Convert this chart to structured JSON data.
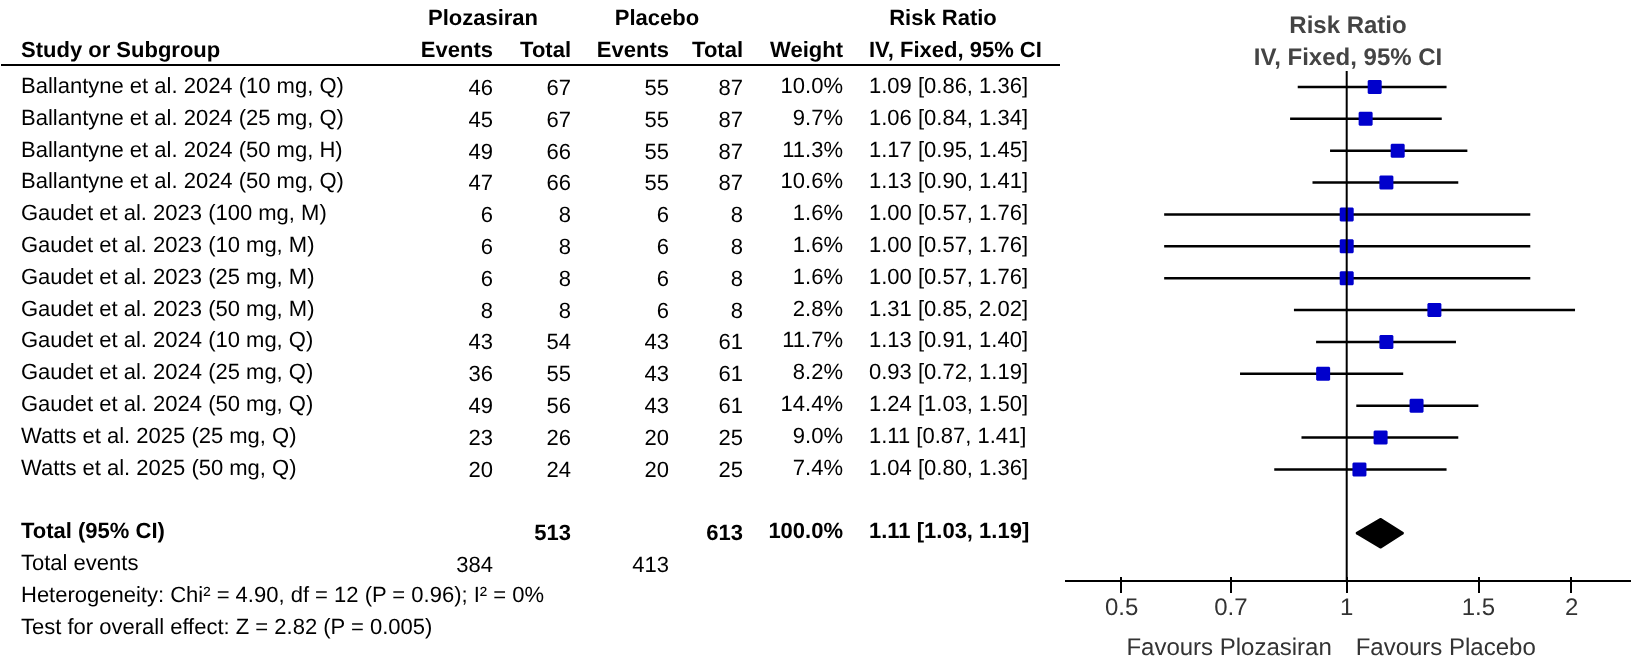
{
  "chart_data": [
    {
      "type": "other",
      "ylabel": "Study or Subgroup",
      "data_labels": true,
      "categories": [
        "Ballantyne et al. 2024 (10 mg, Q)",
        "Ballantyne et al. 2024 (25 mg, Q)",
        "Ballantyne et al. 2024 (50 mg, H)",
        "Ballantyne et al. 2024 (50 mg, Q)",
        "Gaudet et al. 2023 (100 mg, M)",
        "Gaudet et al. 2023 (10 mg, M)",
        "Gaudet et al. 2023 (25 mg, M)",
        "Gaudet et al. 2023 (50 mg, M)",
        "Gaudet et al. 2024 (10 mg, Q)",
        "Gaudet et al. 2024 (25 mg, Q)",
        "Gaudet et al. 2024 (50 mg, Q)",
        "Watts et al. 2025 (25 mg, Q)",
        "Watts et al. 2025 (50 mg, Q)",
        null,
        "Total (95% CI)",
        "Total events"
      ],
      "series": [
        {
          "name": "Events",
          "values": [
            46,
            45,
            49,
            47,
            6,
            6,
            6,
            8,
            43,
            36,
            49,
            23,
            20,
            null,
            null,
            384
          ]
        },
        {
          "name": "Total",
          "values": [
            67,
            67,
            66,
            66,
            8,
            8,
            8,
            8,
            54,
            55,
            56,
            26,
            24,
            null,
            513,
            null
          ]
        },
        {
          "name": "Events",
          "values": [
            55,
            55,
            55,
            55,
            6,
            6,
            6,
            6,
            43,
            43,
            43,
            20,
            20,
            null,
            null,
            413
          ]
        },
        {
          "name": "Total",
          "values": [
            87,
            87,
            87,
            87,
            8,
            8,
            8,
            8,
            61,
            61,
            61,
            25,
            25,
            null,
            613,
            null
          ]
        },
        {
          "name": "Weight",
          "values": [
            10.0,
            9.7,
            11.3,
            10.6,
            1.6,
            1.6,
            1.6,
            2.8,
            11.7,
            8.2,
            14.4,
            9.0,
            7.4,
            null,
            100.0,
            null
          ],
          "value_labels": [
            "10.0%",
            "9.7%",
            "11.3%",
            "10.6%",
            "1.6%",
            "1.6%",
            "1.6%",
            "2.8%",
            "11.7%",
            "8.2%",
            "14.4%",
            "9.0%",
            "7.4%",
            null,
            "100.0%",
            null
          ]
        },
        {
          "name": "IV, Fixed, 95% CI",
          "values": [
            1.09,
            1.06,
            1.17,
            1.13,
            1.0,
            1.0,
            1.0,
            1.31,
            1.13,
            0.93,
            1.24,
            1.11,
            1.04,
            null,
            1.11,
            null
          ],
          "value_labels": [
            "1.09 [0.86, 1.36]",
            "1.06 [0.84, 1.34]",
            "1.17 [0.95, 1.45]",
            "1.13 [0.90, 1.41]",
            "1.00 [0.57, 1.76]",
            "1.00 [0.57, 1.76]",
            "1.00 [0.57, 1.76]",
            "1.31 [0.85, 2.02]",
            "1.13 [0.91, 1.40]",
            "0.93 [0.72, 1.19]",
            "1.24 [1.03, 1.50]",
            "1.11 [0.87, 1.41]",
            "1.04 [0.80, 1.36]",
            null,
            "1.11 [1.03, 1.19]",
            null
          ]
        }
      ],
      "annotations": [
        "Plozasiran",
        "Placebo",
        "Risk Ratio",
        "Heterogeneity: Chi² = 4.90, df = 12 (P = 0.96); I² = 0%",
        "Test for overall effect: Z = 2.82 (P = 0.005)"
      ]
    },
    {
      "type": "scatter",
      "title": "Risk Ratio",
      "subtitle": "IV, Fixed, 95% CI",
      "orientation": "horizontal",
      "log": "x",
      "tick_labels": "x",
      "grid": false,
      "categories": [
        null,
        null,
        null,
        null,
        null,
        null,
        null,
        null,
        null,
        null,
        null,
        null,
        null,
        null,
        null,
        null
      ],
      "series": [
        {
          "color": "#0000cc",
          "marker": "square",
          "values": [
            1.09,
            1.06,
            1.17,
            1.13,
            1.0,
            1.0,
            1.0,
            1.31,
            1.13,
            0.93,
            1.24,
            1.11,
            1.04,
            null,
            null,
            null
          ],
          "errors": [
            [
              0.86,
              1.36
            ],
            [
              0.84,
              1.34
            ],
            [
              0.95,
              1.45
            ],
            [
              0.9,
              1.41
            ],
            [
              0.57,
              1.76
            ],
            [
              0.57,
              1.76
            ],
            [
              0.57,
              1.76
            ],
            [
              0.85,
              2.02
            ],
            [
              0.91,
              1.4
            ],
            [
              0.72,
              1.19
            ],
            [
              1.03,
              1.5
            ],
            [
              0.87,
              1.41
            ],
            [
              0.8,
              1.36
            ],
            null,
            null,
            null
          ]
        },
        {
          "color": "#000000",
          "marker": "diamond",
          "values": [
            null,
            null,
            null,
            null,
            null,
            null,
            null,
            null,
            null,
            null,
            null,
            null,
            null,
            null,
            1.11,
            null
          ],
          "errors": [
            null,
            null,
            null,
            null,
            null,
            null,
            null,
            null,
            null,
            null,
            null,
            null,
            null,
            null,
            [
              1.03,
              1.19
            ],
            null
          ]
        }
      ],
      "xlim": [
        0.42,
        2.4
      ],
      "xticks": [
        0.5,
        0.7,
        1,
        1.5,
        2
      ],
      "ref_lines": [
        {
          "axis": "x",
          "value": 1,
          "color": "#000000"
        }
      ],
      "annotations": [
        "Favours Plozasiran",
        "Favours Placebo"
      ]
    }
  ]
}
